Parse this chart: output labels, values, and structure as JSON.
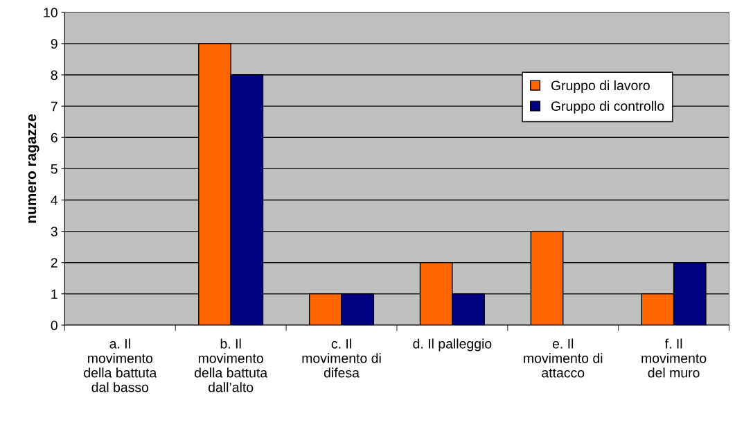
{
  "chart_data": {
    "type": "bar",
    "ylabel": "numero ragazze",
    "categories": [
      "a. Il\nmovimento\ndella battuta\ndal basso",
      "b. Il\nmovimento\ndella battuta\ndall’alto",
      "c. Il\nmovimento di\ndifesa",
      "d. Il palleggio",
      "e. Il\nmovimento di\nattacco",
      "f. Il\nmovimento\ndel muro"
    ],
    "series": [
      {
        "name": "Gruppo di lavoro",
        "color": "#ff6600",
        "values": [
          0,
          9,
          1,
          2,
          3,
          1
        ]
      },
      {
        "name": "Gruppo di controllo",
        "color": "#000080",
        "values": [
          0,
          8,
          1,
          1,
          0,
          2
        ]
      }
    ],
    "ylim": [
      0,
      10
    ],
    "yticks": [
      0,
      1,
      2,
      3,
      4,
      5,
      6,
      7,
      8,
      9,
      10
    ],
    "grid": "y",
    "legend": "top right"
  }
}
